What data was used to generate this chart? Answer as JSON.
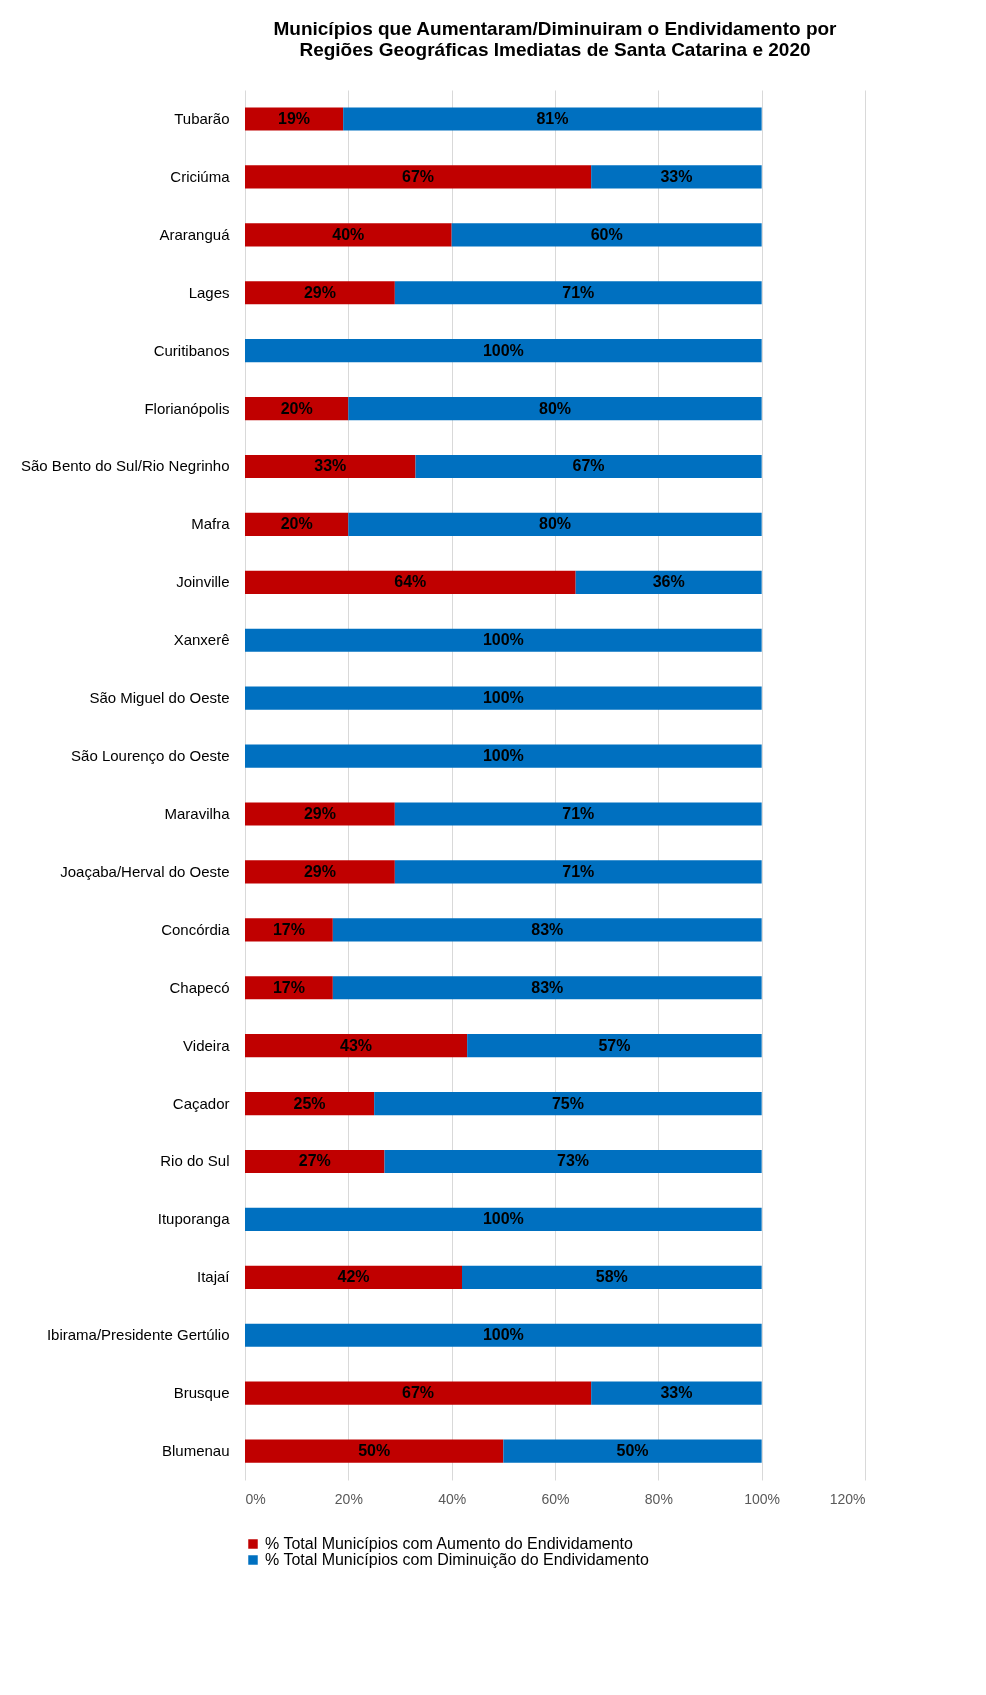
{
  "chart_data": {
    "type": "bar",
    "orientation": "horizontal",
    "stacked": true,
    "title": "Municípios que Aumentaram/Diminuiram o Endividamento por Regiões Geográficas Imediatas de Santa Catarina e 2020",
    "categories": [
      "Tubarão",
      "Criciúma",
      "Araranguá",
      "Lages",
      "Curitibanos",
      "Florianópolis",
      "São Bento do Sul/Rio Negrinho",
      "Mafra",
      "Joinville",
      "Xanxerê",
      "São Miguel do Oeste",
      "São Lourenço do Oeste",
      "Maravilha",
      "Joaçaba/Herval do Oeste",
      "Concórdia",
      "Chapecó",
      "Videira",
      "Caçador",
      "Rio do Sul",
      "Ituporanga",
      "Itajaí",
      "Ibirama/Presidente Gertúlio",
      "Brusque",
      "Blumenau"
    ],
    "series": [
      {
        "name": "% Total Municípios com Aumento do Endividamento",
        "color": "#c00000",
        "values": [
          19,
          67,
          40,
          29,
          0,
          20,
          33,
          20,
          64,
          0,
          0,
          0,
          29,
          29,
          17,
          17,
          43,
          25,
          27,
          0,
          42,
          0,
          67,
          50
        ],
        "value_labels": [
          "19%",
          "67%",
          "40%",
          "29%",
          null,
          "20%",
          "33%",
          "20%",
          "64%",
          null,
          null,
          null,
          "29%",
          "29%",
          "17%",
          "17%",
          "43%",
          "25%",
          "27%",
          null,
          "42%",
          null,
          "67%",
          "50%"
        ]
      },
      {
        "name": "% Total Municípios com  Diminuição do Endividamento",
        "color": "#0070c0",
        "values": [
          81,
          33,
          60,
          71,
          100,
          80,
          67,
          80,
          36,
          100,
          100,
          100,
          71,
          71,
          83,
          83,
          57,
          75,
          73,
          100,
          58,
          100,
          33,
          50
        ],
        "value_labels": [
          "81%",
          "33%",
          "60%",
          "71%",
          "100%",
          "80%",
          "67%",
          "80%",
          "36%",
          "100%",
          "100%",
          "100%",
          "71%",
          "71%",
          "83%",
          "83%",
          "57%",
          "75%",
          "73%",
          "100%",
          "58%",
          "100%",
          "33%",
          "50%"
        ]
      }
    ],
    "xlim": [
      0,
      120
    ],
    "xticks": [
      {
        "value": 0,
        "label": "0%"
      },
      {
        "value": 20,
        "label": "20%"
      },
      {
        "value": 40,
        "label": "40%"
      },
      {
        "value": 60,
        "label": "60%"
      },
      {
        "value": 80,
        "label": "80%"
      },
      {
        "value": 100,
        "label": "100%"
      },
      {
        "value": 120,
        "label": "120%"
      }
    ],
    "grid": "x",
    "legend": "bottom"
  }
}
